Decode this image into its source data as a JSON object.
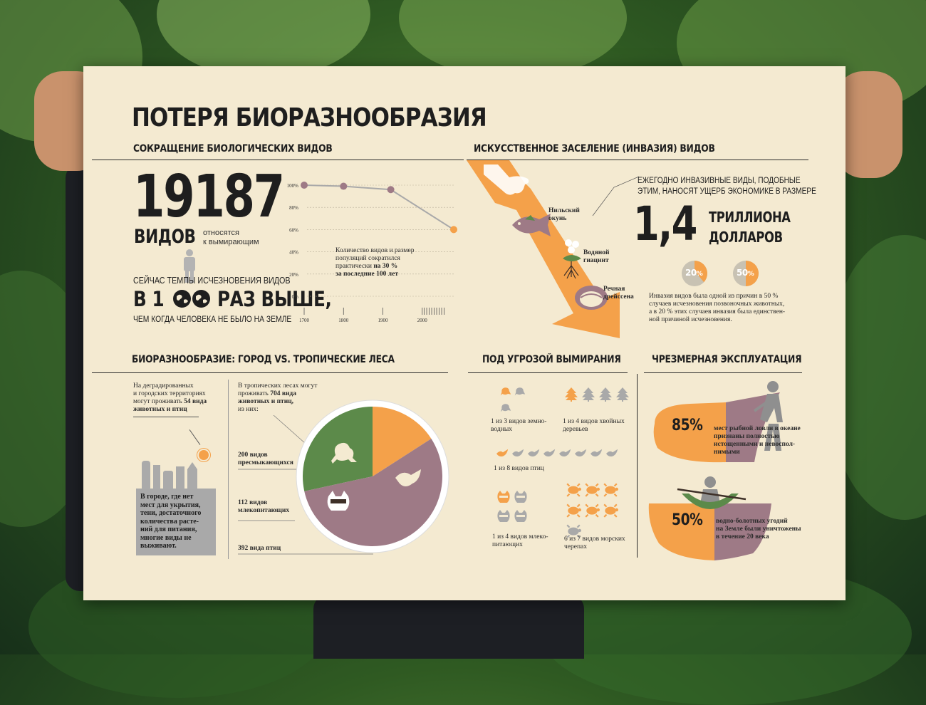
{
  "title": "ПОТЕРЯ БИОРАЗНООБРАЗИЯ",
  "colors": {
    "poster": "#f4ead1",
    "orange": "#f4a14a",
    "mauve": "#9e7a86",
    "green": "#5c8a4a",
    "grey": "#a9a9a9",
    "dark": "#1e1e1e"
  },
  "species": {
    "heading": "СОКРАЩЕНИЕ БИОЛОГИЧЕСКИХ ВИДОВ",
    "count": "19187",
    "count_unit": "ВИДОВ",
    "count_note_1": "относятся",
    "count_note_2": "к вымирающим",
    "rate_line1": "СЕЙЧАС ТЕМПЫ ИСЧЕЗНОВЕНИЯ ВИДОВ",
    "rate_prefix": "В 1",
    "rate_suffix": "РАЗ ВЫШЕ,",
    "rate_line3": "ЧЕМ КОГДА ЧЕЛОВЕКА НЕ БЫЛО НА ЗЕМЛЕ",
    "chart_note_1": "Количество видов и размер",
    "chart_note_2": "популяций сократился",
    "chart_note_3": "практически",
    "chart_note_3b": "на 30 %",
    "chart_note_4": "за последние 100 лет"
  },
  "chart_data": {
    "type": "line",
    "x": [
      1700,
      1800,
      1900,
      2000
    ],
    "x_ticks": [
      "1700",
      "1800",
      "1900",
      "2000"
    ],
    "y_ticks": [
      "100%",
      "80%",
      "60%",
      "40%",
      "20%",
      "0%"
    ],
    "ylim": [
      0,
      100
    ],
    "xlim": [
      1700,
      2080
    ],
    "series": [
      {
        "points": [
          [
            1700,
            100
          ],
          [
            1800,
            99
          ],
          [
            1920,
            96
          ],
          [
            2080,
            60
          ]
        ]
      }
    ]
  },
  "invasion": {
    "heading": "ИСКУССТВЕННОЕ ЗАСЕЛЕНИЕ (ИНВАЗИЯ) ВИДОВ",
    "label_perch_1": "Нильский",
    "label_perch_2": "окунь",
    "label_hyacinth_1": "Водяной",
    "label_hyacinth_2": "гиацинт",
    "label_mussel_1": "Речная",
    "label_mussel_2": "дрейссена",
    "damage_line1": "ЕЖЕГОДНО ИНВАЗИВНЫЕ ВИДЫ, ПОДОБНЫЕ",
    "damage_line2": "ЭТИМ, НАНОСЯТ УЩЕРБ ЭКОНОМИКЕ В РАЗМЕРЕ",
    "amount": "1,4",
    "amount_unit_1": "ТРИЛЛИОНА",
    "amount_unit_2": "ДОЛЛАРОВ",
    "pct_a": "20",
    "pct_b": "50",
    "pct_sign": "%",
    "cause_1": "Инвазия видов была одной из причин в 50 %",
    "cause_2": "случаев исчезновения позвоночных животных,",
    "cause_3": "а в 20 % этих случаев инвазия была единствен-",
    "cause_4": "ной причиной исчезновения."
  },
  "city": {
    "heading": "БИОРАЗНООБРАЗИЕ: ГОРОД VS. ТРОПИЧЕСКИЕ ЛЕСА",
    "city_note_1": "На деградированных",
    "city_note_2": "и городских территориях",
    "city_note_3": "могут проживать",
    "city_note_3b": "54 вида",
    "city_note_4": "животных и птиц",
    "box_1": "В городе, где нет",
    "box_2": "мест для укрытия,",
    "box_3": "тени, достаточного",
    "box_4": "количества расте-",
    "box_5": "ний для питания,",
    "box_6": "многие виды не",
    "box_7": "выживают.",
    "forest_1": "В тропических лесах могут",
    "forest_2": "проживать",
    "forest_2b": "704 вида",
    "forest_3": "животных и птиц,",
    "forest_4": "из них:",
    "reptiles_1": "200 видов",
    "reptiles_2": "пресмыкающихся",
    "mammals_1": "112 видов",
    "mammals_2": "млекопитающих",
    "birds": "392 вида птиц",
    "pie": [
      {
        "label": "пресмыкающиеся",
        "value": 200
      },
      {
        "label": "млекопитающие",
        "value": 112
      },
      {
        "label": "птицы",
        "value": 392
      }
    ]
  },
  "threat": {
    "heading": "ПОД УГРОЗОЙ ВЫМИРАНИЯ",
    "amphib_1": "1 из 3 видов земно-",
    "amphib_2": "водных",
    "conifer_1": "1 из 4 видов хвойных",
    "conifer_2": "деревьев",
    "birds": "1 из 8 видов птиц",
    "mammals_1": "1 из 4 видов млеко-",
    "mammals_2": "питающих",
    "turtles_1": "6 из 7 видов морских",
    "turtles_2": "черепах",
    "ratios": {
      "amphibians": [
        1,
        3
      ],
      "conifers": [
        1,
        4
      ],
      "birds": [
        1,
        8
      ],
      "mammals": [
        1,
        4
      ],
      "turtles": [
        6,
        7
      ]
    }
  },
  "exploit": {
    "heading": "ЧРЕЗМЕРНАЯ ЭКСПЛУАТАЦИЯ",
    "fish_pct": "85%",
    "fish_1": "мест рыбной ловли в океане",
    "fish_2": "признаны полностью",
    "fish_3": "истощенными и невоспол-",
    "fish_4": "нимыми",
    "wet_pct": "50%",
    "wet_1": "водно-болотных угодий",
    "wet_2": "на Земле были уничтожены",
    "wet_3": "в течение 20 века"
  }
}
